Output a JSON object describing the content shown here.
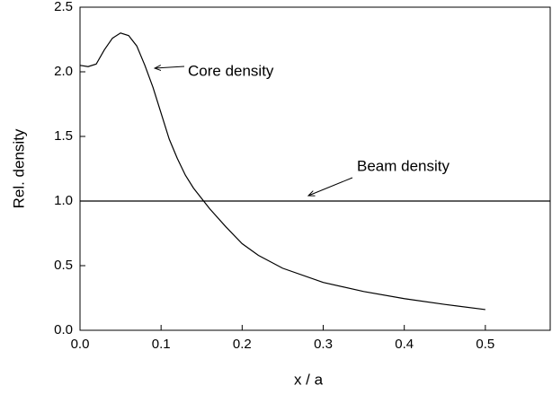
{
  "chart_data": {
    "type": "line",
    "xlabel": "x / a",
    "ylabel": "Rel. density",
    "xlim": [
      0,
      0.58
    ],
    "ylim": [
      0,
      2.5
    ],
    "xticks": [
      {
        "value": 0,
        "label": "0.0"
      },
      0.1,
      0.2,
      0.3,
      0.4,
      0.5
    ],
    "yticks": [
      {
        "value": 0,
        "label": "0.0"
      },
      0.5,
      {
        "value": 1,
        "label": "1.0"
      },
      1.5,
      {
        "value": 2,
        "label": "2.0"
      },
      {
        "value": 2.5,
        "label": "2.5"
      }
    ],
    "grid": false,
    "series": [
      {
        "name": "Core density",
        "color": "#000000",
        "x": [
          0,
          0.01,
          0.02,
          0.03,
          0.04,
          0.05,
          0.06,
          0.07,
          0.08,
          0.09,
          0.1,
          0.11,
          0.12,
          0.13,
          0.14,
          0.15,
          0.16,
          0.18,
          0.2,
          0.22,
          0.25,
          0.3,
          0.35,
          0.4,
          0.45,
          0.5
        ],
        "values": [
          2.05,
          2.04,
          2.06,
          2.17,
          2.26,
          2.3,
          2.28,
          2.2,
          2.05,
          1.88,
          1.68,
          1.48,
          1.33,
          1.2,
          1.1,
          1.02,
          0.94,
          0.8,
          0.67,
          0.58,
          0.48,
          0.37,
          0.3,
          0.245,
          0.2,
          0.16
        ]
      },
      {
        "name": "Beam density",
        "color": "#000000",
        "x": [
          0,
          0.58
        ],
        "values": [
          1,
          1
        ]
      }
    ]
  }
}
